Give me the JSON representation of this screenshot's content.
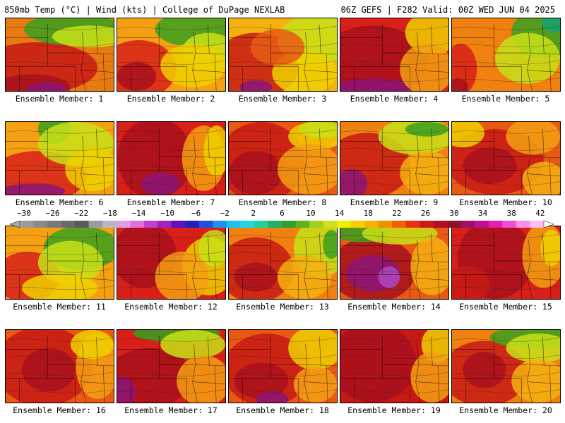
{
  "header": {
    "left": "850mb Temp (°C) | Wind (kts) | College of DuPage NEXLAB",
    "right": "06Z GEFS | F282 Valid: 00Z WED JUN 04 2025"
  },
  "panels": [
    {
      "label": "Ensemble Member: 1",
      "base": "#e87a12",
      "blobs": [
        [
          "#c81a14",
          0.3,
          0.68,
          0.55,
          0.35
        ],
        [
          "#a8101c",
          0.25,
          0.95,
          0.35,
          0.18
        ],
        [
          "#8c1478",
          0.38,
          0.98,
          0.18,
          0.1
        ],
        [
          "#3aa020",
          0.62,
          0.15,
          0.45,
          0.22
        ],
        [
          "#c8e018",
          0.78,
          0.25,
          0.35,
          0.15
        ]
      ]
    },
    {
      "label": "Ensemble Member: 2",
      "base": "#f5a012",
      "blobs": [
        [
          "#d82018",
          0.2,
          0.7,
          0.35,
          0.4
        ],
        [
          "#a8101c",
          0.18,
          0.8,
          0.18,
          0.2
        ],
        [
          "#3aa020",
          0.75,
          0.15,
          0.4,
          0.25
        ],
        [
          "#c8e018",
          0.85,
          0.45,
          0.25,
          0.25
        ],
        [
          "#f0d000",
          0.7,
          0.65,
          0.3,
          0.3
        ]
      ]
    },
    {
      "label": "Ensemble Member: 3",
      "base": "#f5b010",
      "blobs": [
        [
          "#c81a14",
          0.25,
          0.65,
          0.4,
          0.45
        ],
        [
          "#8c1478",
          0.25,
          0.95,
          0.15,
          0.1
        ],
        [
          "#c8e018",
          0.8,
          0.3,
          0.35,
          0.35
        ],
        [
          "#f0d000",
          0.7,
          0.75,
          0.3,
          0.3
        ],
        [
          "#e85a14",
          0.45,
          0.4,
          0.25,
          0.25
        ]
      ]
    },
    {
      "label": "Ensemble Member: 4",
      "base": "#d82018",
      "blobs": [
        [
          "#a8101c",
          0.3,
          0.6,
          0.5,
          0.5
        ],
        [
          "#8c1478",
          0.3,
          0.95,
          0.35,
          0.12
        ],
        [
          "#f0d000",
          0.85,
          0.2,
          0.25,
          0.3
        ],
        [
          "#f5a012",
          0.8,
          0.7,
          0.25,
          0.35
        ]
      ]
    },
    {
      "label": "Ensemble Member: 5",
      "base": "#f08010",
      "blobs": [
        [
          "#3aa020",
          0.85,
          0.2,
          0.3,
          0.35
        ],
        [
          "#18a070",
          0.95,
          0.05,
          0.12,
          0.15
        ],
        [
          "#c8e018",
          0.7,
          0.55,
          0.3,
          0.35
        ],
        [
          "#d82018",
          0.08,
          0.7,
          0.15,
          0.35
        ],
        [
          "#a8101c",
          0.05,
          0.95,
          0.1,
          0.12
        ]
      ]
    },
    {
      "label": "Ensemble Member: 6",
      "base": "#f5a012",
      "blobs": [
        [
          "#d82018",
          0.3,
          0.75,
          0.45,
          0.35
        ],
        [
          "#8c1478",
          0.25,
          0.95,
          0.3,
          0.1
        ],
        [
          "#3aa020",
          0.45,
          0.1,
          0.15,
          0.2
        ],
        [
          "#c8e018",
          0.65,
          0.3,
          0.35,
          0.3
        ],
        [
          "#f0d000",
          0.8,
          0.65,
          0.25,
          0.3
        ]
      ]
    },
    {
      "label": "Ensemble Member: 7",
      "base": "#d82018",
      "blobs": [
        [
          "#a8101c",
          0.35,
          0.5,
          0.35,
          0.55
        ],
        [
          "#8c1478",
          0.4,
          0.85,
          0.18,
          0.15
        ],
        [
          "#f5a012",
          0.8,
          0.5,
          0.2,
          0.45
        ],
        [
          "#f0d000",
          0.92,
          0.4,
          0.12,
          0.35
        ]
      ]
    },
    {
      "label": "Ensemble Member: 8",
      "base": "#e85a14",
      "blobs": [
        [
          "#c81a14",
          0.3,
          0.55,
          0.4,
          0.55
        ],
        [
          "#a8101c",
          0.25,
          0.7,
          0.25,
          0.3
        ],
        [
          "#f0d000",
          0.8,
          0.2,
          0.25,
          0.2
        ],
        [
          "#c8e018",
          0.85,
          0.1,
          0.2,
          0.12
        ],
        [
          "#f5a012",
          0.75,
          0.65,
          0.3,
          0.35
        ]
      ]
    },
    {
      "label": "Ensemble Member: 9",
      "base": "#f08010",
      "blobs": [
        [
          "#c81a14",
          0.25,
          0.6,
          0.4,
          0.45
        ],
        [
          "#8c1478",
          0.1,
          0.85,
          0.15,
          0.2
        ],
        [
          "#c8e018",
          0.7,
          0.2,
          0.35,
          0.25
        ],
        [
          "#3aa020",
          0.8,
          0.1,
          0.2,
          0.1
        ],
        [
          "#f5b010",
          0.8,
          0.7,
          0.25,
          0.3
        ]
      ]
    },
    {
      "label": "Ensemble Member: 10",
      "base": "#e85a14",
      "blobs": [
        [
          "#c81a14",
          0.4,
          0.55,
          0.45,
          0.45
        ],
        [
          "#a8101c",
          0.35,
          0.6,
          0.25,
          0.25
        ],
        [
          "#f0d000",
          0.1,
          0.15,
          0.2,
          0.2
        ],
        [
          "#f5a012",
          0.75,
          0.2,
          0.25,
          0.25
        ],
        [
          "#f5b010",
          0.85,
          0.8,
          0.2,
          0.25
        ]
      ]
    },
    {
      "label": "Ensemble Member: 11",
      "base": "#f5a012",
      "blobs": [
        [
          "#d82018",
          0.2,
          0.7,
          0.3,
          0.35
        ],
        [
          "#3aa020",
          0.7,
          0.3,
          0.35,
          0.3
        ],
        [
          "#c8e018",
          0.6,
          0.5,
          0.3,
          0.3
        ],
        [
          "#f0d000",
          0.5,
          0.85,
          0.35,
          0.2
        ]
      ]
    },
    {
      "label": "Ensemble Member: 12",
      "base": "#d82018",
      "blobs": [
        [
          "#a8101c",
          0.25,
          0.4,
          0.3,
          0.45
        ],
        [
          "#f0d000",
          0.85,
          0.55,
          0.25,
          0.4
        ],
        [
          "#c8e018",
          0.9,
          0.3,
          0.15,
          0.25
        ],
        [
          "#f5a012",
          0.6,
          0.7,
          0.25,
          0.35
        ]
      ]
    },
    {
      "label": "Ensemble Member: 13",
      "base": "#f08010",
      "blobs": [
        [
          "#c81a14",
          0.25,
          0.6,
          0.35,
          0.45
        ],
        [
          "#a8101c",
          0.25,
          0.7,
          0.2,
          0.2
        ],
        [
          "#c8e018",
          0.85,
          0.3,
          0.25,
          0.4
        ],
        [
          "#3aa020",
          0.95,
          0.25,
          0.08,
          0.2
        ],
        [
          "#f5b010",
          0.7,
          0.7,
          0.25,
          0.3
        ]
      ]
    },
    {
      "label": "Ensemble Member: 14",
      "base": "#e85a14",
      "blobs": [
        [
          "#a8101c",
          0.3,
          0.6,
          0.4,
          0.45
        ],
        [
          "#8c1478",
          0.3,
          0.65,
          0.25,
          0.25
        ],
        [
          "#b048c0",
          0.45,
          0.7,
          0.1,
          0.15
        ],
        [
          "#3aa020",
          0.2,
          0.1,
          0.25,
          0.12
        ],
        [
          "#c8e018",
          0.55,
          0.1,
          0.35,
          0.15
        ],
        [
          "#f5b010",
          0.85,
          0.55,
          0.2,
          0.4
        ]
      ]
    },
    {
      "label": "Ensemble Member: 15",
      "base": "#d82018",
      "blobs": [
        [
          "#a8101c",
          0.4,
          0.45,
          0.35,
          0.55
        ],
        [
          "#f5a012",
          0.85,
          0.4,
          0.2,
          0.45
        ],
        [
          "#f0d000",
          0.92,
          0.3,
          0.1,
          0.25
        ],
        [
          "#c81a14",
          0.15,
          0.8,
          0.2,
          0.25
        ]
      ]
    },
    {
      "label": "Ensemble Member: 16",
      "base": "#e85a14",
      "blobs": [
        [
          "#c81a14",
          0.35,
          0.5,
          0.45,
          0.55
        ],
        [
          "#a8101c",
          0.4,
          0.55,
          0.25,
          0.3
        ],
        [
          "#f5a012",
          0.85,
          0.5,
          0.2,
          0.45
        ],
        [
          "#f0d000",
          0.8,
          0.2,
          0.2,
          0.2
        ]
      ]
    },
    {
      "label": "Ensemble Member: 17",
      "base": "#d82018",
      "blobs": [
        [
          "#a8101c",
          0.3,
          0.65,
          0.4,
          0.4
        ],
        [
          "#8c1478",
          0.05,
          0.85,
          0.12,
          0.2
        ],
        [
          "#3aa020",
          0.55,
          0.05,
          0.4,
          0.12
        ],
        [
          "#c8e018",
          0.7,
          0.2,
          0.3,
          0.2
        ],
        [
          "#f5a012",
          0.8,
          0.7,
          0.25,
          0.35
        ]
      ]
    },
    {
      "label": "Ensemble Member: 18",
      "base": "#e85a14",
      "blobs": [
        [
          "#c81a14",
          0.35,
          0.55,
          0.4,
          0.5
        ],
        [
          "#a8101c",
          0.3,
          0.7,
          0.25,
          0.25
        ],
        [
          "#8c1478",
          0.4,
          0.95,
          0.15,
          0.1
        ],
        [
          "#f0d000",
          0.8,
          0.25,
          0.25,
          0.3
        ],
        [
          "#f5a012",
          0.8,
          0.75,
          0.2,
          0.25
        ]
      ]
    },
    {
      "label": "Ensemble Member: 19",
      "base": "#c81a14",
      "blobs": [
        [
          "#a8101c",
          0.3,
          0.45,
          0.4,
          0.55
        ],
        [
          "#f0d000",
          0.9,
          0.2,
          0.15,
          0.25
        ],
        [
          "#f5a012",
          0.85,
          0.65,
          0.2,
          0.35
        ]
      ]
    },
    {
      "label": "Ensemble Member: 20",
      "base": "#f08010",
      "blobs": [
        [
          "#c81a14",
          0.3,
          0.6,
          0.4,
          0.45
        ],
        [
          "#a8101c",
          0.3,
          0.55,
          0.2,
          0.25
        ],
        [
          "#3aa020",
          0.75,
          0.1,
          0.4,
          0.15
        ],
        [
          "#c8e018",
          0.8,
          0.25,
          0.3,
          0.2
        ],
        [
          "#f5b010",
          0.8,
          0.7,
          0.25,
          0.3
        ]
      ]
    }
  ],
  "colorbar": {
    "labels": [
      "−30",
      "−26",
      "−22",
      "−18",
      "−14",
      "−10",
      "−6",
      "−2",
      "2",
      "6",
      "10",
      "14",
      "18",
      "22",
      "26",
      "30",
      "34",
      "38",
      "42"
    ],
    "colors": [
      "#9a9a9a",
      "#8a8a8a",
      "#7a7a7a",
      "#6a6a6a",
      "#5a5a5a",
      "#9a9aa8",
      "#b8b8c8",
      "#d8a0e8",
      "#e070e0",
      "#c040d0",
      "#a020c0",
      "#6010c0",
      "#2020c0",
      "#2050e0",
      "#2090f0",
      "#20c0f0",
      "#20d8e0",
      "#20d0a0",
      "#20b060",
      "#30a030",
      "#60b020",
      "#a0d020",
      "#d0e020",
      "#f0f000",
      "#f8d000",
      "#f8b000",
      "#f09000",
      "#f06000",
      "#e83010",
      "#d01818",
      "#b01020",
      "#901028",
      "#a01068",
      "#c01090",
      "#e020b0",
      "#f050d0",
      "#f890e8",
      "#f8c0f0"
    ]
  }
}
